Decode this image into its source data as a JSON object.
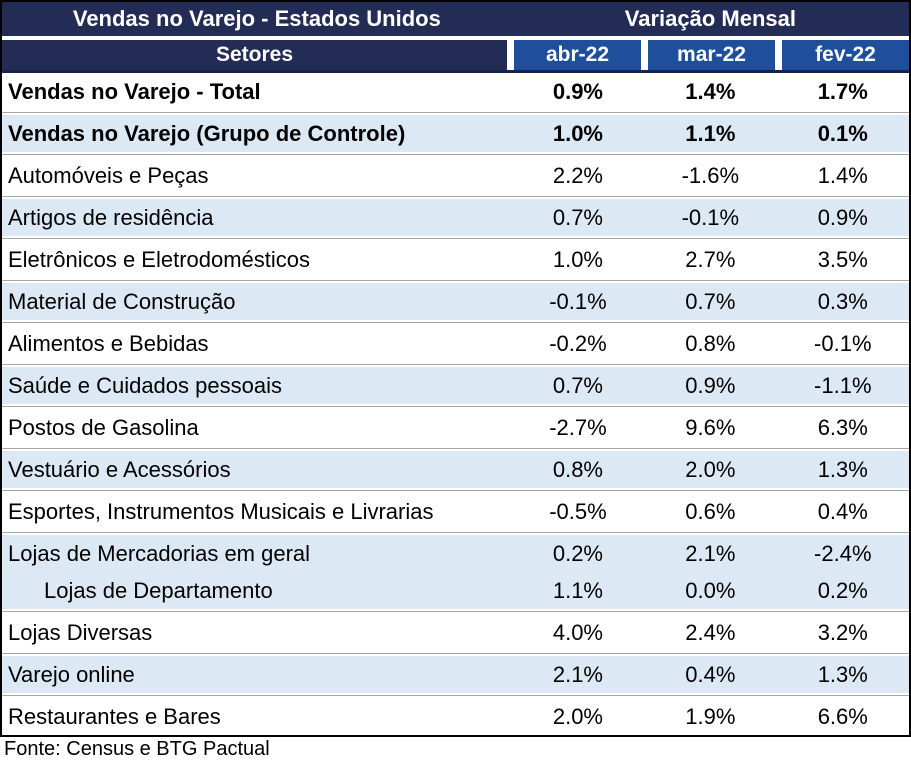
{
  "header": {
    "title_left": "Vendas no Varejo - Estados Unidos",
    "title_right": "Variação Mensal",
    "sectors_label": "Setores",
    "columns": [
      "abr-22",
      "mar-22",
      "fev-22"
    ]
  },
  "colors": {
    "navy": "#222C54",
    "blue": "#1F4E9B",
    "shade": "#DCE9F5",
    "sep": "#A6A6A6"
  },
  "table": {
    "rows": [
      {
        "label": "Vendas no Varejo - Total",
        "values": [
          "0.9%",
          "1.4%",
          "1.7%"
        ],
        "bold": true,
        "shaded": false
      },
      {
        "label": "Vendas no Varejo (Grupo de Controle)",
        "values": [
          "1.0%",
          "1.1%",
          "0.1%"
        ],
        "bold": true,
        "shaded": true
      },
      {
        "label": "Automóveis e Peças",
        "values": [
          "2.2%",
          "-1.6%",
          "1.4%"
        ],
        "bold": false,
        "shaded": false
      },
      {
        "label": "Artigos de residência",
        "values": [
          "0.7%",
          "-0.1%",
          "0.9%"
        ],
        "bold": false,
        "shaded": true
      },
      {
        "label": "Eletrônicos e Eletrodomésticos",
        "values": [
          "1.0%",
          "2.7%",
          "3.5%"
        ],
        "bold": false,
        "shaded": false
      },
      {
        "label": "Material de Construção",
        "values": [
          "-0.1%",
          "0.7%",
          "0.3%"
        ],
        "bold": false,
        "shaded": true
      },
      {
        "label": "Alimentos e Bebidas",
        "values": [
          "-0.2%",
          "0.8%",
          "-0.1%"
        ],
        "bold": false,
        "shaded": false
      },
      {
        "label": "Saúde e Cuidados pessoais",
        "values": [
          "0.7%",
          "0.9%",
          "-1.1%"
        ],
        "bold": false,
        "shaded": true
      },
      {
        "label": "Postos de Gasolina",
        "values": [
          "-2.7%",
          "9.6%",
          "6.3%"
        ],
        "bold": false,
        "shaded": false
      },
      {
        "label": "Vestuário e Acessórios",
        "values": [
          "0.8%",
          "2.0%",
          "1.3%"
        ],
        "bold": false,
        "shaded": true
      },
      {
        "label": "Esportes, Instrumentos Musicais e Livrarias",
        "values": [
          "-0.5%",
          "0.6%",
          "0.4%"
        ],
        "bold": false,
        "shaded": false
      },
      {
        "label": "Lojas de Mercadorias em geral",
        "values": [
          "0.2%",
          "2.1%",
          "-2.4%"
        ],
        "bold": false,
        "shaded": true
      },
      {
        "label": "Lojas de Departamento",
        "values": [
          "1.1%",
          "0.0%",
          "0.2%"
        ],
        "bold": false,
        "shaded": true,
        "indent": true
      },
      {
        "label": "Lojas Diversas",
        "values": [
          "4.0%",
          "2.4%",
          "3.2%"
        ],
        "bold": false,
        "shaded": false
      },
      {
        "label": "Varejo online",
        "values": [
          "2.1%",
          "0.4%",
          "1.3%"
        ],
        "bold": false,
        "shaded": true
      },
      {
        "label": "Restaurantes e Bares",
        "values": [
          "2.0%",
          "1.9%",
          "6.6%"
        ],
        "bold": false,
        "shaded": false
      }
    ]
  },
  "footer": {
    "source": "Fonte: Census e BTG Pactual"
  },
  "chart_data": {
    "type": "table",
    "title": "Vendas no Varejo - Estados Unidos",
    "subtitle": "Variação Mensal",
    "units": "%",
    "columns": [
      "Setores",
      "abr-22",
      "mar-22",
      "fev-22"
    ],
    "rows": [
      [
        "Vendas no Varejo - Total",
        0.9,
        1.4,
        1.7
      ],
      [
        "Vendas no Varejo (Grupo de Controle)",
        1.0,
        1.1,
        0.1
      ],
      [
        "Automóveis e Peças",
        2.2,
        -1.6,
        1.4
      ],
      [
        "Artigos de residência",
        0.7,
        -0.1,
        0.9
      ],
      [
        "Eletrônicos e Eletrodomésticos",
        1.0,
        2.7,
        3.5
      ],
      [
        "Material de Construção",
        -0.1,
        0.7,
        0.3
      ],
      [
        "Alimentos e Bebidas",
        -0.2,
        0.8,
        -0.1
      ],
      [
        "Saúde e Cuidados pessoais",
        0.7,
        0.9,
        -1.1
      ],
      [
        "Postos de Gasolina",
        -2.7,
        9.6,
        6.3
      ],
      [
        "Vestuário e Acessórios",
        0.8,
        2.0,
        1.3
      ],
      [
        "Esportes, Instrumentos Musicais e Livrarias",
        -0.5,
        0.6,
        0.4
      ],
      [
        "Lojas de Mercadorias em geral",
        0.2,
        2.1,
        -2.4
      ],
      [
        "Lojas de Departamento",
        1.1,
        0.0,
        0.2
      ],
      [
        "Lojas Diversas",
        4.0,
        2.4,
        3.2
      ],
      [
        "Varejo online",
        2.1,
        0.4,
        1.3
      ],
      [
        "Restaurantes e Bares",
        2.0,
        1.9,
        6.6
      ]
    ],
    "source": "Fonte: Census e BTG Pactual"
  }
}
